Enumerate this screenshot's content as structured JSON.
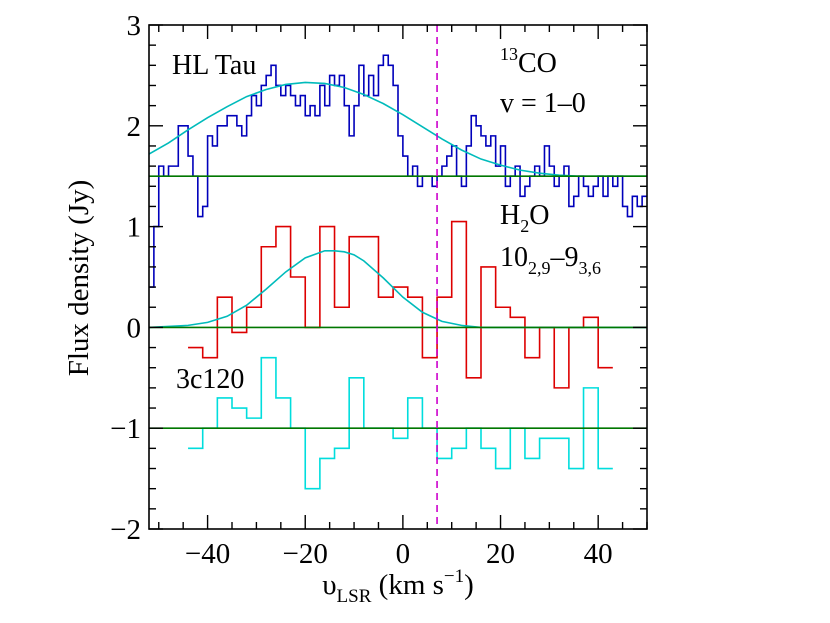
{
  "chart_data": {
    "type": "line",
    "xlabel": "υLSR (km s−1)",
    "xlabel_parts": {
      "main": "υ",
      "sub": "LSR",
      "unit_pre": " (km s",
      "unit_sup": "−1",
      "unit_post": ")"
    },
    "ylabel": "Flux density (Jy)",
    "xlim": [
      -52,
      50
    ],
    "ylim": [
      -2,
      3
    ],
    "x_ticks": [
      -40,
      -20,
      0,
      20,
      40
    ],
    "x_tick_labels": [
      "−40",
      "−20",
      "0",
      "20",
      "40"
    ],
    "y_ticks": [
      -2,
      -1,
      0,
      1,
      2,
      3
    ],
    "y_tick_labels": [
      "−2",
      "−1",
      "0",
      "1",
      "2",
      "3"
    ],
    "grid": false,
    "annotations": {
      "target": "HL Tau",
      "co_line": {
        "sup": "13",
        "main": "CO"
      },
      "co_transition": "v = 1–0",
      "h2o": {
        "main": "H",
        "sub": "2",
        "post": "O"
      },
      "h2o_transition": {
        "upper": "10",
        "upper_sub": "2,9",
        "dash": "–",
        "lower": "9",
        "lower_sub": "3,6"
      },
      "calibrator": "3c120"
    },
    "vertical_line": {
      "x": 7,
      "style": "dashed",
      "color": "#cc00cc"
    },
    "baselines": [
      {
        "name": "13CO baseline",
        "y": 1.5,
        "color": "#007700"
      },
      {
        "name": "H2O baseline",
        "y": 0.0,
        "color": "#007700"
      },
      {
        "name": "3c120 baseline",
        "y": -1.0,
        "color": "#007700"
      }
    ],
    "series": [
      {
        "name": "13CO v=1-0 (HL Tau)",
        "style": "steps",
        "color": "#0000bb",
        "x": [
          -52,
          -51,
          -50,
          -49,
          -48,
          -47,
          -46,
          -45,
          -44,
          -43,
          -42,
          -41,
          -40,
          -39,
          -38,
          -37,
          -36,
          -35,
          -34,
          -33,
          -32,
          -31,
          -30,
          -29,
          -28,
          -27,
          -26,
          -25,
          -24,
          -23,
          -22,
          -21,
          -20,
          -19,
          -18,
          -17,
          -16,
          -15,
          -14,
          -13,
          -12,
          -11,
          -10,
          -9,
          -8,
          -7,
          -6,
          -5,
          -4,
          -3,
          -2,
          -1,
          0,
          1,
          2,
          3,
          4,
          5,
          6,
          7,
          8,
          9,
          10,
          11,
          12,
          13,
          14,
          15,
          16,
          17,
          18,
          19,
          20,
          21,
          22,
          23,
          24,
          25,
          26,
          27,
          28,
          29,
          30,
          31,
          32,
          33,
          34,
          35,
          36,
          37,
          38,
          39,
          40,
          41,
          42,
          43,
          44,
          45,
          46,
          47,
          48,
          49
        ],
        "values": [
          0.4,
          1.0,
          1.6,
          1.5,
          1.6,
          1.6,
          2.0,
          2.0,
          1.7,
          1.5,
          1.1,
          1.2,
          1.9,
          1.8,
          2.0,
          2.0,
          2.1,
          2.1,
          2.0,
          1.9,
          2.1,
          2.3,
          2.2,
          2.4,
          2.5,
          2.6,
          2.4,
          2.3,
          2.4,
          2.3,
          2.2,
          2.3,
          2.1,
          2.2,
          2.1,
          2.4,
          2.2,
          2.5,
          2.4,
          2.5,
          2.2,
          1.9,
          2.2,
          2.6,
          2.3,
          2.5,
          2.3,
          2.6,
          2.7,
          2.6,
          2.4,
          1.9,
          1.7,
          1.5,
          1.6,
          1.4,
          1.5,
          1.5,
          1.4,
          1.5,
          1.6,
          1.7,
          1.8,
          1.5,
          1.4,
          1.8,
          2.1,
          2.0,
          1.9,
          1.8,
          1.9,
          1.6,
          1.8,
          1.4,
          1.5,
          1.6,
          1.3,
          1.4,
          1.5,
          1.6,
          1.5,
          1.8,
          1.6,
          1.4,
          1.5,
          1.6,
          1.2,
          1.3,
          1.5,
          1.4,
          1.3,
          1.4,
          1.5,
          1.3,
          1.5,
          1.4,
          1.5,
          1.2,
          1.1,
          1.3,
          1.2,
          1.3
        ]
      },
      {
        "name": "H2O 10(2,9)-9(3,6) (HL Tau)",
        "style": "steps",
        "color": "#dd0000",
        "x": [
          -44,
          -41,
          -38,
          -35,
          -32,
          -29,
          -26,
          -23,
          -20,
          -17,
          -14,
          -11,
          -8,
          -5,
          -2,
          1,
          4,
          7,
          10,
          13,
          16,
          19,
          22,
          25,
          28,
          31,
          34,
          37,
          40
        ],
        "values": [
          -0.2,
          -0.3,
          0.3,
          -0.05,
          0.2,
          0.8,
          1.0,
          0.5,
          0.0,
          1.0,
          0.2,
          0.9,
          0.9,
          0.3,
          0.4,
          0.3,
          -0.3,
          0.3,
          1.05,
          -0.5,
          0.6,
          0.2,
          0.1,
          -0.3,
          0.0,
          -0.6,
          0.0,
          0.1,
          -0.4
        ]
      },
      {
        "name": "3c120 (calibrator)",
        "style": "steps",
        "color": "#00dddd",
        "x": [
          -44,
          -41,
          -38,
          -35,
          -32,
          -29,
          -26,
          -23,
          -20,
          -17,
          -14,
          -11,
          -8,
          -5,
          -2,
          1,
          4,
          7,
          10,
          13,
          16,
          19,
          22,
          25,
          28,
          31,
          34,
          37,
          40
        ],
        "values": [
          -1.2,
          -1.0,
          -0.7,
          -0.8,
          -0.9,
          -0.3,
          -0.7,
          -1.0,
          -1.6,
          -1.3,
          -1.2,
          -0.5,
          -1.0,
          -1.0,
          -1.1,
          -0.7,
          -1.0,
          -1.3,
          -1.2,
          -1.0,
          -1.2,
          -1.4,
          -1.0,
          -1.3,
          -1.1,
          -1.1,
          -1.4,
          -0.6,
          -1.4
        ]
      },
      {
        "name": "13CO Gaussian fit",
        "style": "smooth",
        "color": "#00bbbb",
        "x": [
          -52,
          -48,
          -44,
          -40,
          -36,
          -32,
          -28,
          -24,
          -20,
          -16,
          -12,
          -8,
          -4,
          0,
          4,
          8,
          12,
          16,
          20,
          24,
          28,
          32,
          36,
          40,
          44,
          48,
          50
        ],
        "values": [
          1.72,
          1.83,
          1.96,
          2.08,
          2.19,
          2.29,
          2.36,
          2.41,
          2.43,
          2.42,
          2.38,
          2.31,
          2.22,
          2.11,
          1.99,
          1.87,
          1.76,
          1.67,
          1.61,
          1.56,
          1.53,
          1.51,
          1.5,
          1.5,
          1.5,
          1.5,
          1.5
        ]
      },
      {
        "name": "H2O Gaussian fit",
        "style": "smooth",
        "color": "#00bbbb",
        "x": [
          -52,
          -48,
          -44,
          -40,
          -36,
          -32,
          -28,
          -24,
          -20,
          -16,
          -14,
          -12,
          -10,
          -8,
          -4,
          0,
          4,
          8,
          12,
          16,
          20,
          24,
          28,
          32,
          36,
          40,
          44,
          48,
          50
        ],
        "values": [
          0.0,
          0.01,
          0.02,
          0.05,
          0.11,
          0.22,
          0.38,
          0.55,
          0.69,
          0.76,
          0.76,
          0.75,
          0.72,
          0.66,
          0.49,
          0.3,
          0.15,
          0.06,
          0.02,
          0.0,
          0.0,
          0.0,
          0.0,
          0.0,
          0.0,
          0.0,
          0.0,
          0.0,
          0.0
        ]
      }
    ]
  }
}
